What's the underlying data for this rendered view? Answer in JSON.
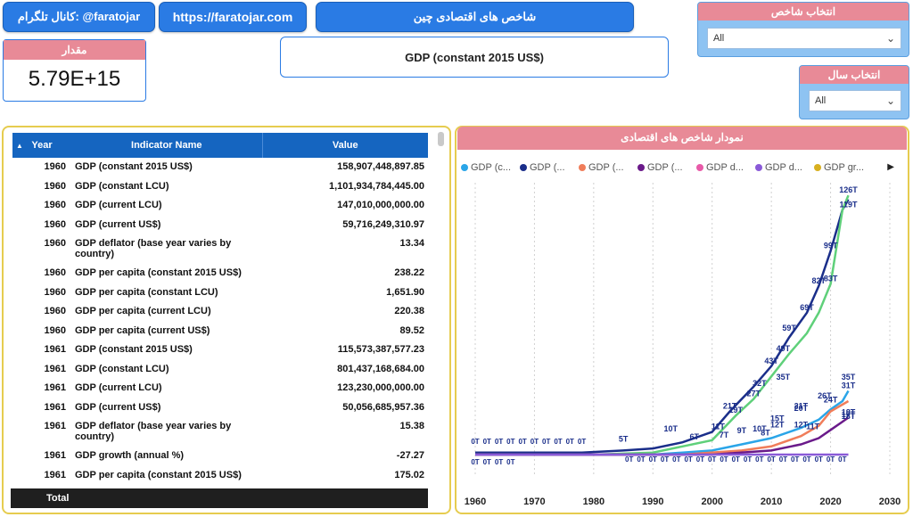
{
  "header": {
    "telegram_label": "کانال تلگرام: @faratojar",
    "website": "https://faratojar.com",
    "dashboard_title": "شاخص های اقتصادی چین",
    "indicator_title": "GDP (constant 2015 US$)"
  },
  "kpi": {
    "label": "مقدار",
    "value": "5.79E+15"
  },
  "slicers": {
    "indicator": {
      "label": "انتخاب شاخص",
      "selected": "All"
    },
    "year": {
      "label": "انتخاب سال",
      "selected": "All"
    }
  },
  "table": {
    "columns": [
      "Year",
      "Indicator Name",
      "Value"
    ],
    "rows": [
      {
        "year": "1960",
        "indicator": "GDP (constant 2015 US$)",
        "value": "158,907,448,897.85"
      },
      {
        "year": "1960",
        "indicator": "GDP (constant LCU)",
        "value": "1,101,934,784,445.00"
      },
      {
        "year": "1960",
        "indicator": "GDP (current LCU)",
        "value": "147,010,000,000.00"
      },
      {
        "year": "1960",
        "indicator": "GDP (current US$)",
        "value": "59,716,249,310.97"
      },
      {
        "year": "1960",
        "indicator": "GDP deflator (base year varies by country)",
        "value": "13.34"
      },
      {
        "year": "1960",
        "indicator": "GDP per capita (constant 2015 US$)",
        "value": "238.22"
      },
      {
        "year": "1960",
        "indicator": "GDP per capita (constant LCU)",
        "value": "1,651.90"
      },
      {
        "year": "1960",
        "indicator": "GDP per capita (current LCU)",
        "value": "220.38"
      },
      {
        "year": "1960",
        "indicator": "GDP per capita (current US$)",
        "value": "89.52"
      },
      {
        "year": "1961",
        "indicator": "GDP (constant 2015 US$)",
        "value": "115,573,387,577.23"
      },
      {
        "year": "1961",
        "indicator": "GDP (constant LCU)",
        "value": "801,437,168,684.00"
      },
      {
        "year": "1961",
        "indicator": "GDP (current LCU)",
        "value": "123,230,000,000.00"
      },
      {
        "year": "1961",
        "indicator": "GDP (current US$)",
        "value": "50,056,685,957.36"
      },
      {
        "year": "1961",
        "indicator": "GDP deflator (base year varies by country)",
        "value": "15.38"
      },
      {
        "year": "1961",
        "indicator": "GDP growth (annual %)",
        "value": "-27.27",
        "negative": true
      },
      {
        "year": "1961",
        "indicator": "GDP per capita (constant 2015 US$)",
        "value": "175.02"
      }
    ],
    "total_label": "Total"
  },
  "chart": {
    "header": "نمودار شاخص های اقتصادی",
    "legend": [
      {
        "label": "GDP (c...",
        "color": "#2aa5e8"
      },
      {
        "label": "GDP (...",
        "color": "#1a2e8a"
      },
      {
        "label": "GDP (...",
        "color": "#f07d5a"
      },
      {
        "label": "GDP (...",
        "color": "#6a1a8a"
      },
      {
        "label": "GDP d...",
        "color": "#e85aa8"
      },
      {
        "label": "GDP d...",
        "color": "#8a5ad8"
      },
      {
        "label": "GDP gr...",
        "color": "#d8b020"
      }
    ],
    "legend_more_icon": "triangle-right-icon"
  },
  "chart_data": {
    "type": "line",
    "x_ticks": [
      "1960",
      "1970",
      "1980",
      "1990",
      "2000",
      "2010",
      "2020",
      "2030"
    ],
    "xlim": [
      1960,
      2030
    ],
    "series": [
      {
        "color": "#1a2e8a",
        "points": [
          [
            1960,
            1
          ],
          [
            1970,
            1
          ],
          [
            1978,
            1
          ],
          [
            1985,
            2
          ],
          [
            1990,
            3
          ],
          [
            1995,
            6
          ],
          [
            2000,
            11
          ],
          [
            2003,
            21
          ],
          [
            2007,
            33
          ],
          [
            2010,
            43
          ],
          [
            2013,
            57
          ],
          [
            2016,
            69
          ],
          [
            2018,
            82
          ],
          [
            2020,
            99
          ],
          [
            2022,
            119
          ],
          [
            2023,
            124
          ]
        ]
      },
      {
        "color": "#5fd07a",
        "points": [
          [
            1960,
            0
          ],
          [
            1980,
            0
          ],
          [
            1990,
            1
          ],
          [
            1995,
            4
          ],
          [
            2000,
            7
          ],
          [
            2004,
            19
          ],
          [
            2007,
            27
          ],
          [
            2010,
            38
          ],
          [
            2013,
            49
          ],
          [
            2016,
            59
          ],
          [
            2018,
            69
          ],
          [
            2020,
            83
          ],
          [
            2022,
            119
          ],
          [
            2023,
            126
          ]
        ]
      },
      {
        "color": "#2aa5e8",
        "points": [
          [
            1960,
            0
          ],
          [
            1990,
            0
          ],
          [
            2000,
            2
          ],
          [
            2005,
            5
          ],
          [
            2010,
            8
          ],
          [
            2015,
            13
          ],
          [
            2018,
            17
          ],
          [
            2020,
            22
          ],
          [
            2022,
            26
          ],
          [
            2023,
            31
          ]
        ]
      },
      {
        "color": "#f07d5a",
        "points": [
          [
            1960,
            0
          ],
          [
            1995,
            0
          ],
          [
            2005,
            2
          ],
          [
            2010,
            4
          ],
          [
            2015,
            9
          ],
          [
            2018,
            14
          ],
          [
            2020,
            21
          ],
          [
            2023,
            26
          ]
        ]
      },
      {
        "color": "#6a1a8a",
        "points": [
          [
            1960,
            0
          ],
          [
            2000,
            0
          ],
          [
            2010,
            2
          ],
          [
            2015,
            5
          ],
          [
            2018,
            8
          ],
          [
            2020,
            12
          ],
          [
            2022,
            16
          ],
          [
            2023,
            18
          ]
        ]
      },
      {
        "color": "#8a5ad8",
        "points": [
          [
            1960,
            0
          ],
          [
            2023,
            0
          ]
        ]
      }
    ],
    "data_labels": [
      {
        "x": 2023,
        "y": 126,
        "text": "126T"
      },
      {
        "x": 2023,
        "y": 119,
        "text": "119T"
      },
      {
        "x": 2020,
        "y": 99,
        "text": "99T"
      },
      {
        "x": 2018,
        "y": 82,
        "text": "82T"
      },
      {
        "x": 2020,
        "y": 83,
        "text": "83T"
      },
      {
        "x": 2016,
        "y": 69,
        "text": "69T"
      },
      {
        "x": 2013,
        "y": 59,
        "text": "59T"
      },
      {
        "x": 2012,
        "y": 49,
        "text": "49T"
      },
      {
        "x": 2010,
        "y": 43,
        "text": "43T"
      },
      {
        "x": 2008,
        "y": 32,
        "text": "32T"
      },
      {
        "x": 2007,
        "y": 27,
        "text": "27T"
      },
      {
        "x": 2012,
        "y": 35,
        "text": "35T"
      },
      {
        "x": 2003,
        "y": 21,
        "text": "21T"
      },
      {
        "x": 2004,
        "y": 19,
        "text": "19T"
      },
      {
        "x": 2023,
        "y": 31,
        "text": "31T"
      },
      {
        "x": 2023,
        "y": 35,
        "text": "35T"
      },
      {
        "x": 2019,
        "y": 26,
        "text": "26T"
      },
      {
        "x": 2020,
        "y": 24,
        "text": "24T"
      },
      {
        "x": 2015,
        "y": 20,
        "text": "20T"
      },
      {
        "x": 2015,
        "y": 21,
        "text": "21T"
      },
      {
        "x": 2023,
        "y": 18,
        "text": "18T"
      },
      {
        "x": 2023,
        "y": 17,
        "text": "17T"
      },
      {
        "x": 2023,
        "y": 16,
        "text": "18T"
      },
      {
        "x": 2011,
        "y": 15,
        "text": "15T"
      },
      {
        "x": 2015,
        "y": 12,
        "text": "12T"
      },
      {
        "x": 2011,
        "y": 12,
        "text": "12T"
      },
      {
        "x": 2001,
        "y": 11,
        "text": "11T"
      },
      {
        "x": 2008,
        "y": 10,
        "text": "10T"
      },
      {
        "x": 1993,
        "y": 10,
        "text": "10T"
      },
      {
        "x": 2005,
        "y": 9,
        "text": "9T"
      },
      {
        "x": 2002,
        "y": 7,
        "text": "7T"
      },
      {
        "x": 1997,
        "y": 6,
        "text": "6T"
      },
      {
        "x": 1985,
        "y": 5,
        "text": "5T"
      },
      {
        "x": 2017,
        "y": 11,
        "text": "11T"
      },
      {
        "x": 2009,
        "y": 8,
        "text": "8T"
      }
    ]
  }
}
